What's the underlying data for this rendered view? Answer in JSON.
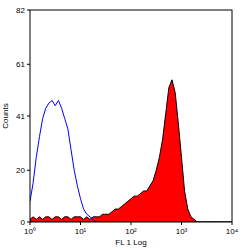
{
  "chart_data": {
    "type": "line",
    "x_label": "FL 1 Log",
    "y_label": "Counts",
    "log": "x",
    "x": [
      1,
      1.15,
      1.33,
      1.54,
      1.78,
      2.05,
      2.37,
      2.74,
      3.16,
      3.65,
      4.22,
      4.87,
      5.62,
      6.49,
      7.5,
      8.66,
      10,
      11.5,
      13.3,
      15.4,
      17.8,
      20.5,
      23.7,
      27.4,
      31.6,
      36.5,
      42.2,
      48.7,
      56.2,
      64.9,
      75,
      86.6,
      100,
      115,
      133,
      154,
      178,
      205,
      237,
      274,
      316,
      365,
      422,
      487,
      562,
      649,
      750,
      866,
      1000,
      1150,
      1330,
      1540,
      1780,
      2050,
      2370,
      2740,
      3160,
      3650,
      4220,
      4870,
      5620,
      6490,
      7500,
      8660,
      10000
    ],
    "series": [
      {
        "type": "line",
        "color": "#0000ff",
        "values": [
          8,
          15,
          25,
          33,
          40,
          44,
          46,
          47,
          45,
          47,
          44,
          40,
          36,
          28,
          20,
          14,
          9,
          5,
          3,
          2,
          1,
          0,
          0,
          0,
          0,
          null,
          null,
          null,
          null,
          null,
          null,
          null,
          null,
          null,
          null,
          null,
          null,
          null,
          null,
          null,
          null,
          null,
          null,
          null,
          null,
          null,
          null,
          null,
          null,
          null,
          null,
          null,
          null,
          null,
          null,
          null,
          null,
          null,
          null,
          null,
          null,
          null,
          null,
          null,
          null
        ]
      },
      {
        "type": "area",
        "color": "#ff0000",
        "values": [
          1,
          2,
          1,
          2,
          1,
          2,
          2,
          1,
          2,
          2,
          1,
          2,
          2,
          1,
          2,
          2,
          2,
          1,
          2,
          1,
          2,
          2,
          2,
          3,
          3,
          3,
          4,
          5,
          5,
          6,
          7,
          8,
          9,
          10,
          10,
          11,
          12,
          12,
          14,
          16,
          20,
          25,
          32,
          42,
          52,
          55,
          50,
          38,
          25,
          12,
          5,
          2,
          1,
          0,
          0,
          0,
          0,
          0,
          0,
          0,
          0,
          0,
          0,
          0,
          0
        ]
      }
    ],
    "xlim": [
      1,
      10000
    ],
    "xticks": [
      {
        "value": 1,
        "label": "10⁰"
      },
      {
        "value": 10,
        "label": "10¹"
      },
      {
        "value": 100,
        "label": "10²"
      },
      {
        "value": 1000,
        "label": "10³"
      },
      {
        "value": 10000,
        "label": "10⁴"
      }
    ],
    "ylim": [
      0,
      82
    ],
    "yticks": [
      0,
      20,
      41,
      61,
      82
    ]
  }
}
